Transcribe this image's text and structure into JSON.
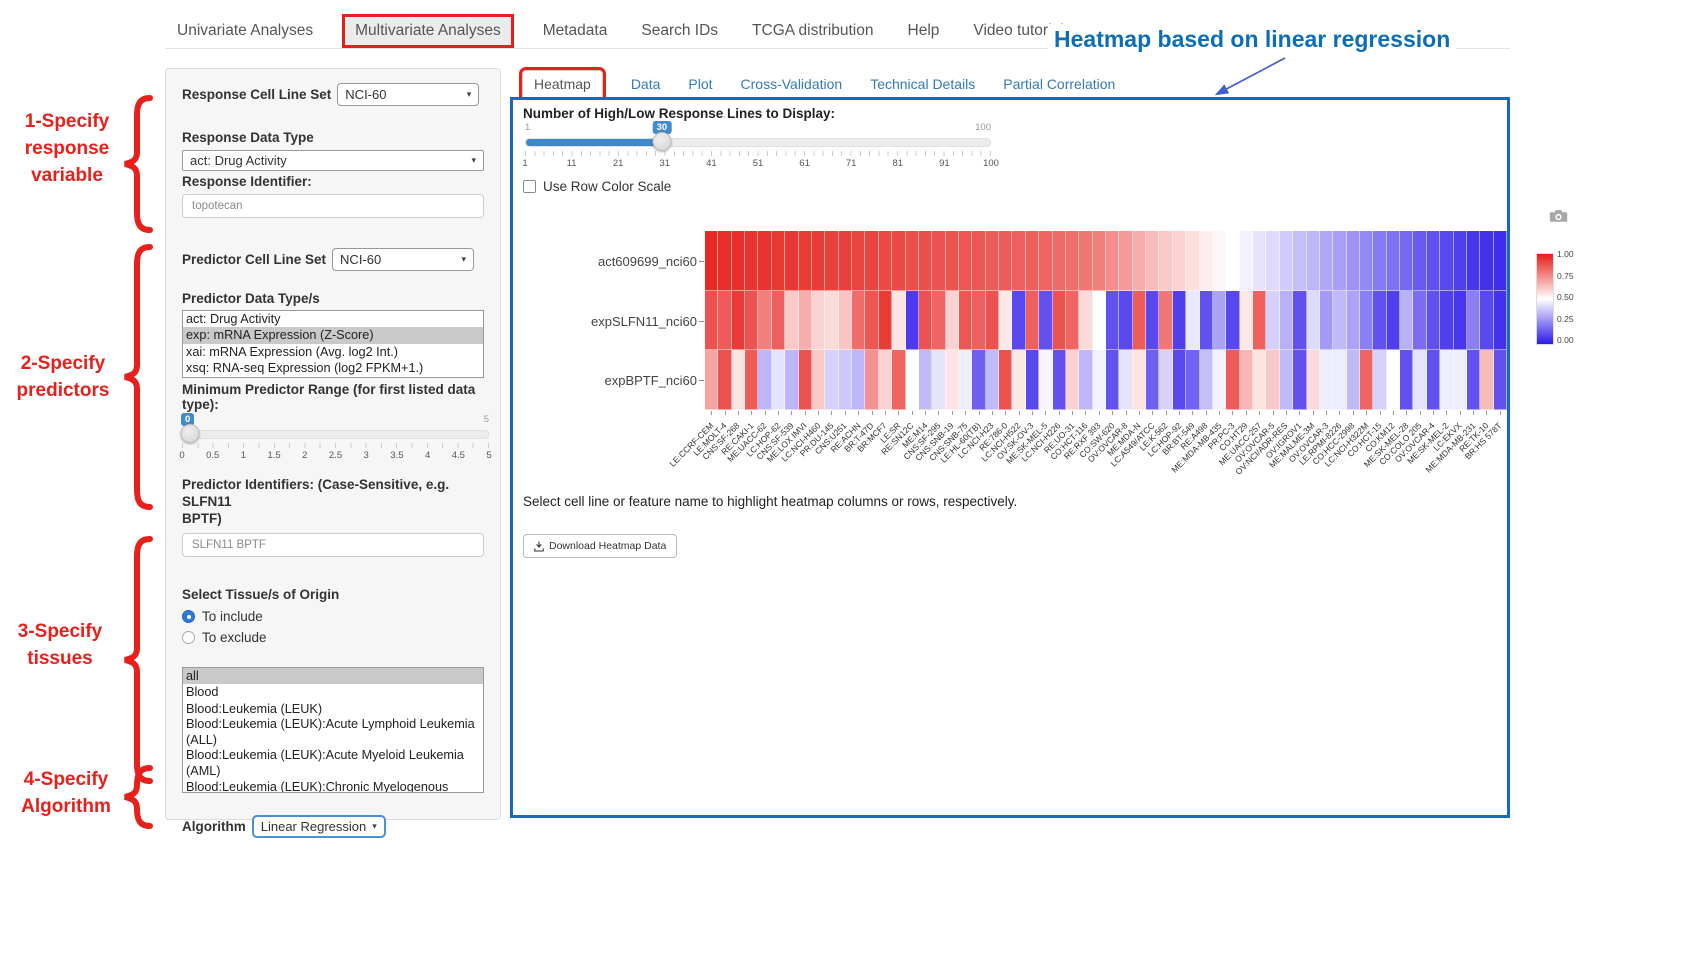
{
  "nav": {
    "items": [
      "Univariate Analyses",
      "Multivariate Analyses",
      "Metadata",
      "Search IDs",
      "TCGA distribution",
      "Help",
      "Video tutorial"
    ],
    "active_index": 1
  },
  "annotations": {
    "heading": "Heatmap based on linear regression",
    "steps": [
      {
        "lines": [
          "1-Specify",
          "response",
          "variable"
        ]
      },
      {
        "lines": [
          "2-Specify",
          "predictors"
        ]
      },
      {
        "lines": [
          "3-Specify",
          "tissues"
        ]
      },
      {
        "lines": [
          "4-Specify",
          "Algorithm"
        ]
      }
    ]
  },
  "form": {
    "response_cell_line_set": {
      "label": "Response Cell Line Set",
      "value": "NCI-60"
    },
    "response_data_type": {
      "label": "Response Data Type",
      "value": "act: Drug Activity"
    },
    "response_identifier": {
      "label": "Response Identifier:",
      "value": "topotecan"
    },
    "predictor_cell_line_set": {
      "label": "Predictor Cell Line Set",
      "value": "NCI-60"
    },
    "predictor_data_types": {
      "label": "Predictor Data Type/s",
      "options": [
        "act: Drug Activity",
        "exp: mRNA Expression (Z-Score)",
        "xai: mRNA Expression (Avg. log2 Int.)",
        "xsq: RNA-seq Expression (log2 FPKM+1.)"
      ],
      "selected_index": 1
    },
    "min_predictor_range": {
      "label": "Minimum Predictor Range (for first listed data type):",
      "value": "0",
      "max_label": "5",
      "ticks": [
        "0",
        "0.5",
        "1",
        "1.5",
        "2",
        "2.5",
        "3",
        "3.5",
        "4",
        "4.5",
        "5"
      ]
    },
    "predictor_identifiers": {
      "label_line1": "Predictor Identifiers: (Case-Sensitive, e.g. SLFN11",
      "label_line2": "BPTF)",
      "value": "SLFN11 BPTF"
    },
    "tissue": {
      "label": "Select Tissue/s of Origin",
      "radio_include": "To include",
      "radio_exclude": "To exclude",
      "include_selected": true,
      "options": [
        "all",
        "Blood",
        "Blood:Leukemia (LEUK)",
        "Blood:Leukemia (LEUK):Acute Lymphoid Leukemia (ALL)",
        "Blood:Leukemia (LEUK):Acute Myeloid Leukemia (AML)",
        "Blood:Leukemia (LEUK):Chronic Myelogenous Leukemia (CML)"
      ],
      "selected_index": 0
    },
    "algorithm": {
      "label": "Algorithm",
      "value": "Linear Regression"
    }
  },
  "main": {
    "tabs": [
      "Heatmap",
      "Data",
      "Plot",
      "Cross-Validation",
      "Technical Details",
      "Partial Correlation"
    ],
    "active_tab_index": 0,
    "lines_slider": {
      "label": "Number of High/Low Response Lines to Display:",
      "min_label": "1",
      "max_label": "100",
      "value": "30",
      "percent": 29.3,
      "ticks": [
        "1",
        "11",
        "21",
        "31",
        "41",
        "51",
        "61",
        "71",
        "81",
        "91",
        "100"
      ]
    },
    "row_scale_checkbox": {
      "label": "Use Row Color Scale",
      "checked": false
    },
    "help_text": "Select cell line or feature name to highlight heatmap columns or rows, respectively.",
    "download_button_label": "Download Heatmap Data"
  },
  "chart_data": {
    "type": "heatmap",
    "rows": [
      "act609699_nci60",
      "expSLFN11_nci60",
      "expBPTF_nci60"
    ],
    "columns": [
      "LE:CCRF-CEM",
      "LE:MOLT-4",
      "CNS:SF-268",
      "RE:CAKI-1",
      "ME:UACC-62",
      "LC:HOP-62",
      "CNS:SF-539",
      "ME:LOX IMVI",
      "LC:NCI-H460",
      "PR:DU-145",
      "CNS:U251",
      "RE:ACHN",
      "BR:T-47D",
      "BR:MCF7",
      "LE:SR",
      "RE:SN12C",
      "ME:M14",
      "CNS:SF-295",
      "CNS:SNB-19",
      "CNS:SNB-75",
      "LE:HL-60(TB)",
      "LC:NCI-H23",
      "RE:786-0",
      "LC:NCI-H522",
      "OV:SK-OV-3",
      "ME:SK-MEL-5",
      "LC:NCI-H226",
      "RE:UO-31",
      "CO:HCT-116",
      "RE:RXF 393",
      "CO:SW-620",
      "OV:OVCAR-8",
      "ME:MDA-N",
      "LC:A549/ATCC",
      "LE:K-562",
      "LC:HOP-92",
      "BR:BT-549",
      "RE:A498",
      "ME:MDA-MB-435",
      "PR:PC-3",
      "CO:HT29",
      "ME:UACC-257",
      "OV:OVCAR-5",
      "OV:NCI/ADR-RES",
      "OV:IGROV1",
      "ME:MALME-3M",
      "OV:OVCAR-3",
      "LE:RPMI-8226",
      "CO:HCC-2998",
      "LC:NCI-H322M",
      "CO:HCT-15",
      "CO:KM12",
      "ME:SK-MEL-28",
      "CO:COLO 205",
      "OV:OVCAR-4",
      "ME:SK-MEL-2",
      "LC:EKVX",
      "ME:MDA-MB-231",
      "RE:TK-10",
      "BR:HS 578T"
    ],
    "values": [
      [
        0.97,
        0.96,
        0.96,
        0.95,
        0.95,
        0.94,
        0.94,
        0.93,
        0.93,
        0.92,
        0.92,
        0.91,
        0.91,
        0.9,
        0.9,
        0.89,
        0.89,
        0.88,
        0.88,
        0.87,
        0.87,
        0.86,
        0.86,
        0.85,
        0.85,
        0.84,
        0.83,
        0.82,
        0.8,
        0.78,
        0.75,
        0.72,
        0.68,
        0.65,
        0.62,
        0.6,
        0.57,
        0.54,
        0.52,
        0.5,
        0.47,
        0.44,
        0.42,
        0.39,
        0.36,
        0.34,
        0.31,
        0.29,
        0.26,
        0.24,
        0.21,
        0.19,
        0.17,
        0.14,
        0.12,
        0.1,
        0.08,
        0.06,
        0.05,
        0.04
      ],
      [
        0.88,
        0.86,
        0.93,
        0.88,
        0.78,
        0.85,
        0.62,
        0.68,
        0.6,
        0.58,
        0.63,
        0.82,
        0.87,
        0.93,
        0.56,
        0.07,
        0.88,
        0.84,
        0.6,
        0.87,
        0.85,
        0.88,
        0.55,
        0.1,
        0.85,
        0.12,
        0.88,
        0.84,
        0.58,
        0.5,
        0.12,
        0.1,
        0.86,
        0.1,
        0.8,
        0.08,
        0.45,
        0.12,
        0.3,
        0.1,
        0.55,
        0.85,
        0.4,
        0.33,
        0.12,
        0.42,
        0.28,
        0.35,
        0.3,
        0.22,
        0.12,
        0.08,
        0.33,
        0.18,
        0.12,
        0.08,
        0.06,
        0.22,
        0.1,
        0.05
      ],
      [
        0.7,
        0.88,
        0.56,
        0.86,
        0.34,
        0.44,
        0.34,
        0.88,
        0.62,
        0.4,
        0.38,
        0.34,
        0.74,
        0.6,
        0.84,
        0.5,
        0.35,
        0.44,
        0.56,
        0.46,
        0.15,
        0.35,
        0.88,
        0.55,
        0.1,
        0.48,
        0.12,
        0.6,
        0.34,
        0.47,
        0.12,
        0.44,
        0.56,
        0.15,
        0.4,
        0.1,
        0.16,
        0.36,
        0.47,
        0.86,
        0.66,
        0.56,
        0.62,
        0.35,
        0.12,
        0.58,
        0.46,
        0.46,
        0.35,
        0.84,
        0.4,
        0.5,
        0.12,
        0.44,
        0.12,
        0.46,
        0.46,
        0.12,
        0.65,
        0.12
      ]
    ],
    "colorscale": {
      "high_color": "#e61c17",
      "mid_color": "#ffffff",
      "low_color": "#301ae9",
      "range": [
        0,
        1
      ],
      "legend_ticks": [
        "1.00",
        "0.75",
        "0.50",
        "0.25",
        "0.00"
      ],
      "legend_position": "right"
    }
  },
  "colors": {
    "annotation_red": "#e8201c",
    "heading_blue": "#0d6eb8",
    "panel_border_blue": "#1669be",
    "tab_link_blue": "#337ab7",
    "slider_blue": "#428bca"
  }
}
